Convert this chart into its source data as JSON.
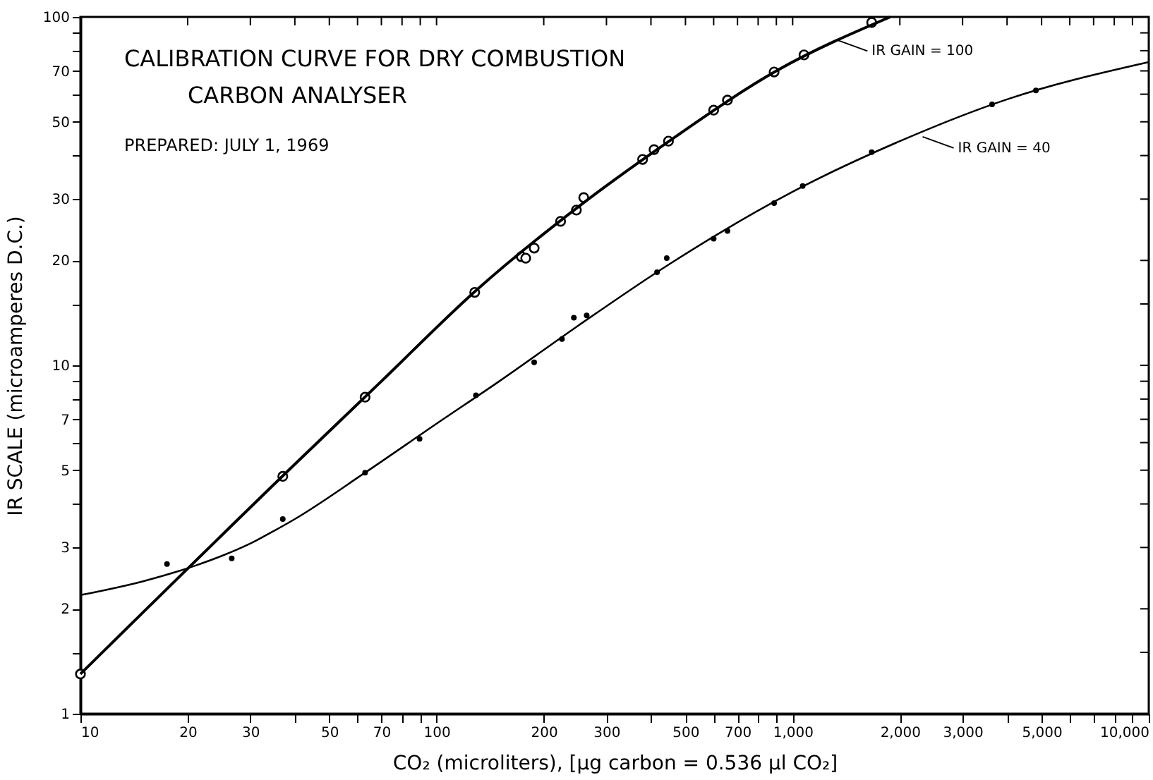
{
  "chart_data": {
    "type": "line",
    "title": "CALIBRATION CURVE FOR DRY COMBUSTION\nCARBON ANALYSER",
    "subtitle": "PREPARED: JULY 1, 1969",
    "xlabel": "CO₂ (microliters), [µg carbon = 0.536 µl CO₂]",
    "ylabel": "IR SCALE (microamperes D.C.)",
    "log": "xy",
    "grid": false,
    "xlim": [
      10,
      10000
    ],
    "ylim": [
      1,
      100
    ],
    "xticks": [
      10,
      20,
      30,
      {
        "value": 40,
        "label": null
      },
      50,
      {
        "value": 60,
        "label": null
      },
      70,
      {
        "value": 80,
        "label": null
      },
      {
        "value": 90,
        "label": null
      },
      100,
      200,
      300,
      {
        "value": 400,
        "label": null
      },
      500,
      {
        "value": 600,
        "label": null
      },
      700,
      {
        "value": 800,
        "label": null
      },
      {
        "value": 900,
        "label": null
      },
      {
        "value": 1000,
        "label": "1,000"
      },
      {
        "value": 2000,
        "label": "2,000"
      },
      {
        "value": 3000,
        "label": "3,000"
      },
      {
        "value": 4000,
        "label": null
      },
      {
        "value": 5000,
        "label": "5,000"
      },
      {
        "value": 6000,
        "label": null
      },
      {
        "value": 7000,
        "label": null
      },
      {
        "value": 8000,
        "label": null
      },
      {
        "value": 9000,
        "label": null
      },
      {
        "value": 10000,
        "label": "10,000"
      }
    ],
    "yticks": [
      1,
      {
        "value": 1.5,
        "label": null
      },
      2,
      3,
      {
        "value": 4,
        "label": null
      },
      5,
      {
        "value": 6,
        "label": null
      },
      7,
      {
        "value": 8,
        "label": null
      },
      {
        "value": 9,
        "label": null
      },
      10,
      {
        "value": 15,
        "label": null
      },
      20,
      30,
      {
        "value": 40,
        "label": null
      },
      50,
      {
        "value": 60,
        "label": null
      },
      70,
      {
        "value": 80,
        "label": null
      },
      {
        "value": 90,
        "label": null
      },
      100
    ],
    "series": [
      {
        "type": "scatter",
        "marker": "circle",
        "color": "#000000",
        "x": [
          10,
          37,
          63,
          128,
          173,
          178,
          188,
          223,
          247,
          259,
          379,
          408,
          448,
          600,
          656,
          887,
          1076,
          1667
        ],
        "values": [
          1.3,
          4.8,
          8.1,
          16.2,
          20.5,
          20.3,
          21.7,
          25.9,
          27.9,
          30.3,
          39,
          41.6,
          44,
          54,
          57.7,
          69.5,
          77.8,
          96.4
        ]
      },
      {
        "line_style": "solid",
        "color": "#000000",
        "x": [
          10,
          40,
          70,
          130,
          250,
          450,
          900,
          1880
        ],
        "values": [
          1.3,
          5.2,
          9,
          16.5,
          28.5,
          44,
          70,
          100
        ]
      },
      {
        "type": "scatter",
        "marker": "circle",
        "color": "#000000",
        "x": [
          17.5,
          26.6,
          37,
          63,
          89.6,
          129,
          188,
          225,
          243,
          264,
          416,
          443,
          600,
          656,
          887,
          1067,
          1667,
          3630,
          4820
        ],
        "values": [
          2.69,
          2.79,
          3.62,
          4.92,
          6.15,
          8.2,
          10.2,
          11.9,
          13.7,
          13.9,
          18.5,
          20.3,
          23.1,
          24.3,
          29.2,
          32.7,
          40.9,
          56.1,
          61.5
        ]
      },
      {
        "line_style": "solid",
        "color": "#000000",
        "x": [
          10,
          15,
          21,
          25,
          30,
          35,
          40,
          63,
          100,
          150,
          250,
          450,
          1000,
          2000,
          4000,
          10000
        ],
        "values": [
          2.19,
          2.4,
          2.66,
          2.84,
          3.08,
          3.35,
          3.62,
          4.92,
          6.8,
          9,
          13,
          19.5,
          31.5,
          44,
          58,
          74.2
        ]
      }
    ],
    "annotations": [
      {
        "text": "IR GAIN = 100",
        "x": 1327,
        "y": 86
      },
      {
        "text": "IR GAIN = 40",
        "x": 2317,
        "y": 45.3
      }
    ]
  }
}
